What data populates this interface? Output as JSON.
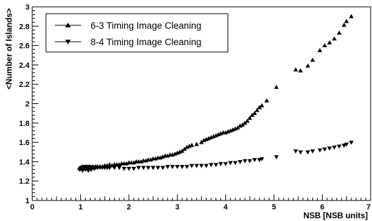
{
  "chart_data": {
    "type": "scatter",
    "title": "",
    "xlabel": "NSB [NSB units]",
    "ylabel": "<Number of Islands>",
    "xlim": [
      0,
      7
    ],
    "ylim": [
      1,
      3
    ],
    "x_ticks": [
      0,
      1,
      2,
      3,
      4,
      5,
      6,
      7
    ],
    "y_ticks": [
      1,
      1.2,
      1.4,
      1.6,
      1.8,
      2,
      2.2,
      2.4,
      2.6,
      2.8,
      3
    ],
    "grid": false,
    "legend_position": "top-left",
    "series": [
      {
        "name": "6-3 Timing Image Cleaning",
        "marker": "triangle-up",
        "color": "#000000",
        "points": [
          [
            0.98,
            1.33
          ],
          [
            1.0,
            1.34
          ],
          [
            1.02,
            1.33
          ],
          [
            1.04,
            1.35
          ],
          [
            1.06,
            1.33
          ],
          [
            1.08,
            1.34
          ],
          [
            1.1,
            1.33
          ],
          [
            1.12,
            1.35
          ],
          [
            1.14,
            1.34
          ],
          [
            1.16,
            1.33
          ],
          [
            1.18,
            1.35
          ],
          [
            1.2,
            1.34
          ],
          [
            1.22,
            1.34
          ],
          [
            1.25,
            1.35
          ],
          [
            1.28,
            1.34
          ],
          [
            1.31,
            1.35
          ],
          [
            1.35,
            1.35
          ],
          [
            1.4,
            1.35
          ],
          [
            1.45,
            1.35
          ],
          [
            1.5,
            1.36
          ],
          [
            1.55,
            1.36
          ],
          [
            1.6,
            1.37
          ],
          [
            1.65,
            1.36
          ],
          [
            1.7,
            1.37
          ],
          [
            1.75,
            1.37
          ],
          [
            1.8,
            1.37
          ],
          [
            1.85,
            1.38
          ],
          [
            1.9,
            1.38
          ],
          [
            1.95,
            1.38
          ],
          [
            2.0,
            1.39
          ],
          [
            2.05,
            1.39
          ],
          [
            2.1,
            1.39
          ],
          [
            2.15,
            1.4
          ],
          [
            2.2,
            1.4
          ],
          [
            2.25,
            1.4
          ],
          [
            2.3,
            1.41
          ],
          [
            2.35,
            1.41
          ],
          [
            2.4,
            1.42
          ],
          [
            2.45,
            1.42
          ],
          [
            2.5,
            1.43
          ],
          [
            2.55,
            1.43
          ],
          [
            2.6,
            1.44
          ],
          [
            2.65,
            1.44
          ],
          [
            2.7,
            1.45
          ],
          [
            2.75,
            1.46
          ],
          [
            2.8,
            1.46
          ],
          [
            2.85,
            1.47
          ],
          [
            2.9,
            1.47
          ],
          [
            2.95,
            1.48
          ],
          [
            3.0,
            1.49
          ],
          [
            3.05,
            1.5
          ],
          [
            3.1,
            1.51
          ],
          [
            3.15,
            1.53
          ],
          [
            3.2,
            1.55
          ],
          [
            3.25,
            1.56
          ],
          [
            3.3,
            1.57
          ],
          [
            3.4,
            1.58
          ],
          [
            3.5,
            1.6
          ],
          [
            3.55,
            1.62
          ],
          [
            3.6,
            1.63
          ],
          [
            3.65,
            1.64
          ],
          [
            3.7,
            1.65
          ],
          [
            3.75,
            1.66
          ],
          [
            3.8,
            1.67
          ],
          [
            3.85,
            1.68
          ],
          [
            3.9,
            1.69
          ],
          [
            3.95,
            1.7
          ],
          [
            4.0,
            1.7
          ],
          [
            4.05,
            1.71
          ],
          [
            4.1,
            1.72
          ],
          [
            4.15,
            1.73
          ],
          [
            4.2,
            1.74
          ],
          [
            4.25,
            1.75
          ],
          [
            4.3,
            1.77
          ],
          [
            4.35,
            1.78
          ],
          [
            4.4,
            1.8
          ],
          [
            4.45,
            1.82
          ],
          [
            4.5,
            1.85
          ],
          [
            4.55,
            1.88
          ],
          [
            4.6,
            1.9
          ],
          [
            4.65,
            1.93
          ],
          [
            4.7,
            1.96
          ],
          [
            4.75,
            1.98
          ],
          [
            4.85,
            2.03
          ],
          [
            5.05,
            2.17
          ],
          [
            5.45,
            2.35
          ],
          [
            5.55,
            2.34
          ],
          [
            5.7,
            2.39
          ],
          [
            5.8,
            2.45
          ],
          [
            5.95,
            2.55
          ],
          [
            6.05,
            2.6
          ],
          [
            6.15,
            2.63
          ],
          [
            6.25,
            2.67
          ],
          [
            6.35,
            2.73
          ],
          [
            6.45,
            2.81
          ],
          [
            6.5,
            2.85
          ],
          [
            6.6,
            2.9
          ]
        ]
      },
      {
        "name": "8-4 Timing Image Cleaning",
        "marker": "triangle-down",
        "color": "#000000",
        "points": [
          [
            0.98,
            1.32
          ],
          [
            1.0,
            1.33
          ],
          [
            1.02,
            1.34
          ],
          [
            1.04,
            1.31
          ],
          [
            1.06,
            1.33
          ],
          [
            1.08,
            1.35
          ],
          [
            1.1,
            1.32
          ],
          [
            1.12,
            1.34
          ],
          [
            1.14,
            1.33
          ],
          [
            1.16,
            1.31
          ],
          [
            1.18,
            1.35
          ],
          [
            1.2,
            1.33
          ],
          [
            1.22,
            1.32
          ],
          [
            1.25,
            1.34
          ],
          [
            1.28,
            1.33
          ],
          [
            1.31,
            1.34
          ],
          [
            1.35,
            1.34
          ],
          [
            1.4,
            1.34
          ],
          [
            1.45,
            1.34
          ],
          [
            1.5,
            1.34
          ],
          [
            1.55,
            1.34
          ],
          [
            1.6,
            1.34
          ],
          [
            1.7,
            1.34
          ],
          [
            1.8,
            1.34
          ],
          [
            1.9,
            1.33
          ],
          [
            2.0,
            1.33
          ],
          [
            2.1,
            1.33
          ],
          [
            2.2,
            1.34
          ],
          [
            2.3,
            1.34
          ],
          [
            2.4,
            1.34
          ],
          [
            2.5,
            1.34
          ],
          [
            2.6,
            1.34
          ],
          [
            2.7,
            1.34
          ],
          [
            2.8,
            1.35
          ],
          [
            2.9,
            1.35
          ],
          [
            3.0,
            1.35
          ],
          [
            3.1,
            1.35
          ],
          [
            3.2,
            1.35
          ],
          [
            3.3,
            1.36
          ],
          [
            3.4,
            1.36
          ],
          [
            3.5,
            1.36
          ],
          [
            3.6,
            1.36
          ],
          [
            3.7,
            1.37
          ],
          [
            3.8,
            1.37
          ],
          [
            3.9,
            1.38
          ],
          [
            4.0,
            1.38
          ],
          [
            4.1,
            1.39
          ],
          [
            4.2,
            1.39
          ],
          [
            4.3,
            1.4
          ],
          [
            4.4,
            1.41
          ],
          [
            4.5,
            1.41
          ],
          [
            4.6,
            1.42
          ],
          [
            4.7,
            1.42
          ],
          [
            4.75,
            1.43
          ],
          [
            5.05,
            1.45
          ],
          [
            5.45,
            1.51
          ],
          [
            5.55,
            1.5
          ],
          [
            5.7,
            1.5
          ],
          [
            5.8,
            1.51
          ],
          [
            5.95,
            1.52
          ],
          [
            6.05,
            1.53
          ],
          [
            6.15,
            1.54
          ],
          [
            6.25,
            1.55
          ],
          [
            6.35,
            1.56
          ],
          [
            6.45,
            1.57
          ],
          [
            6.5,
            1.58
          ],
          [
            6.6,
            1.6
          ]
        ]
      }
    ]
  }
}
